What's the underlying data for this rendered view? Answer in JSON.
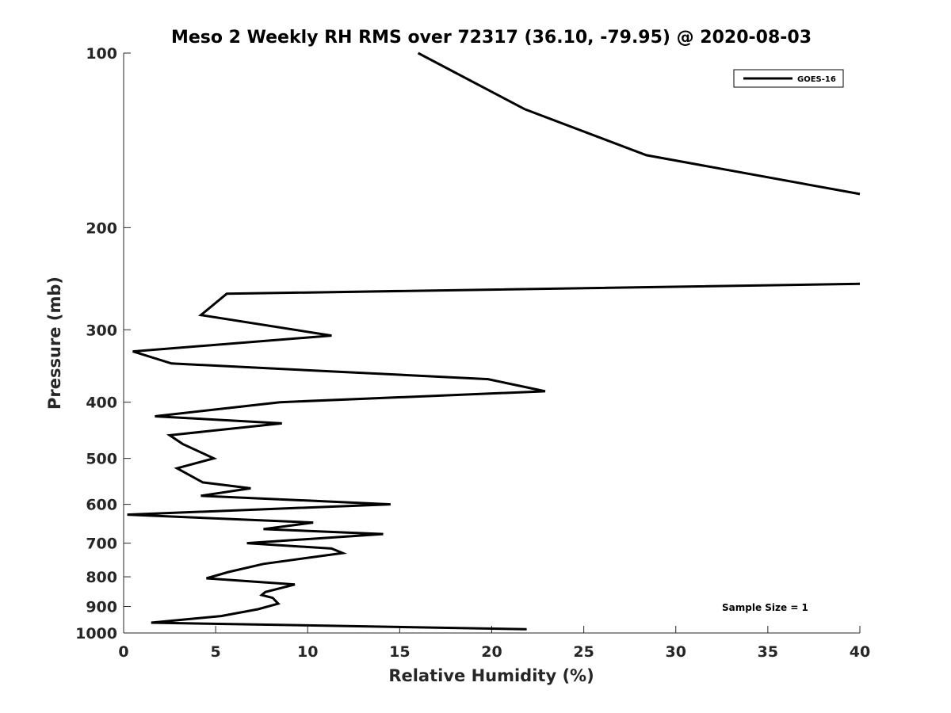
{
  "chart_data": {
    "type": "line",
    "title": "Meso 2 Weekly RH RMS over 72317 (36.10, -79.95) @ 2020-08-03",
    "xlabel": "Relative Humidity (%)",
    "ylabel": "Pressure (mb)",
    "xlim": [
      0,
      40
    ],
    "ylim": [
      100,
      1000
    ],
    "y_scale": "log",
    "y_direction": "reversed",
    "grid": false,
    "legend_position": "top-right",
    "x_ticks": [
      0,
      5,
      10,
      15,
      20,
      25,
      30,
      35,
      40
    ],
    "y_ticks": [
      100,
      200,
      300,
      400,
      500,
      600,
      700,
      800,
      900,
      1000
    ],
    "annotation": "Sample Size = 1",
    "series": [
      {
        "name": "GOES-16",
        "color": "#000000",
        "segments": [
          [
            {
              "x": 16.0,
              "y": 100
            },
            {
              "x": 21.8,
              "y": 125
            },
            {
              "x": 28.4,
              "y": 150
            },
            {
              "x": 40.0,
              "y": 175
            }
          ],
          [
            {
              "x": 40.0,
              "y": 250
            },
            {
              "x": 5.6,
              "y": 260
            },
            {
              "x": 4.2,
              "y": 283
            },
            {
              "x": 11.3,
              "y": 307
            },
            {
              "x": 0.5,
              "y": 327
            },
            {
              "x": 2.6,
              "y": 343
            },
            {
              "x": 19.8,
              "y": 365
            },
            {
              "x": 22.9,
              "y": 383
            },
            {
              "x": 8.5,
              "y": 400
            },
            {
              "x": 1.7,
              "y": 423
            },
            {
              "x": 8.6,
              "y": 435
            },
            {
              "x": 2.5,
              "y": 456
            },
            {
              "x": 3.2,
              "y": 472
            },
            {
              "x": 4.9,
              "y": 500
            },
            {
              "x": 2.9,
              "y": 520
            },
            {
              "x": 4.3,
              "y": 550
            },
            {
              "x": 6.9,
              "y": 563
            },
            {
              "x": 4.2,
              "y": 580
            },
            {
              "x": 14.5,
              "y": 600
            },
            {
              "x": 0.2,
              "y": 625
            },
            {
              "x": 10.3,
              "y": 645
            },
            {
              "x": 7.6,
              "y": 662
            },
            {
              "x": 14.1,
              "y": 675
            },
            {
              "x": 6.7,
              "y": 700
            },
            {
              "x": 11.3,
              "y": 715
            },
            {
              "x": 11.9,
              "y": 728
            },
            {
              "x": 7.6,
              "y": 760
            },
            {
              "x": 5.7,
              "y": 785
            },
            {
              "x": 4.5,
              "y": 805
            },
            {
              "x": 9.3,
              "y": 825
            },
            {
              "x": 7.7,
              "y": 850
            },
            {
              "x": 7.5,
              "y": 860
            },
            {
              "x": 8.1,
              "y": 870
            },
            {
              "x": 8.4,
              "y": 890
            },
            {
              "x": 7.3,
              "y": 910
            },
            {
              "x": 5.3,
              "y": 935
            },
            {
              "x": 1.5,
              "y": 960
            },
            {
              "x": 21.9,
              "y": 985
            }
          ]
        ]
      }
    ]
  }
}
